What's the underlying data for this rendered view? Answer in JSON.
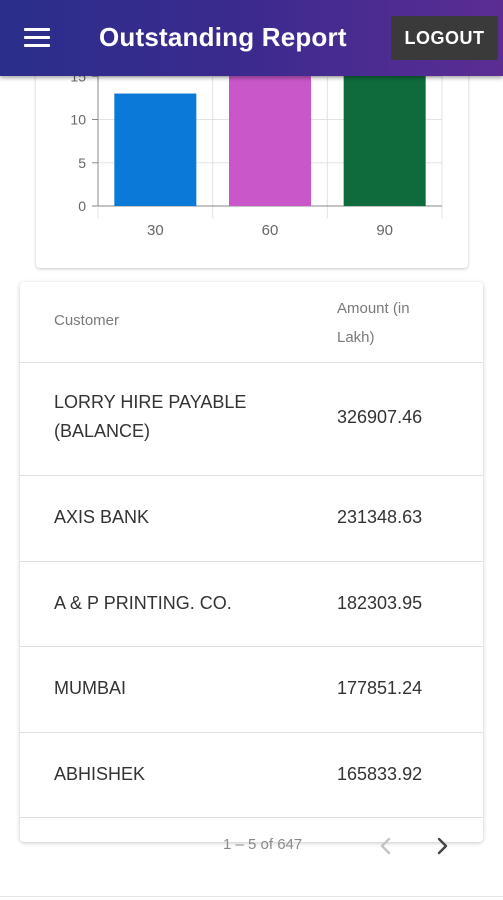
{
  "header": {
    "title": "Outstanding Report",
    "logout_label": "LOGOUT"
  },
  "chart_data": {
    "type": "bar",
    "categories": [
      "30",
      "60",
      "90"
    ],
    "values": [
      13,
      17,
      17
    ],
    "colors": [
      "#0b79d8",
      "#c957c9",
      "#0f6b3c"
    ],
    "yticks": [
      "0",
      "5",
      "10",
      "15"
    ],
    "ylim": [
      0,
      17
    ]
  },
  "table": {
    "headers": {
      "customer": "Customer",
      "amount_line1": "Amount (in",
      "amount_line2": "Lakh)"
    },
    "rows": [
      {
        "name_line1": "LORRY HIRE PAYABLE",
        "name_line2": "(BALANCE)",
        "amount": "326907.46"
      },
      {
        "name_line1": "AXIS BANK",
        "name_line2": "",
        "amount": "231348.63"
      },
      {
        "name_line1": "A & P PRINTING. CO.",
        "name_line2": "",
        "amount": "182303.95"
      },
      {
        "name_line1": "MUMBAI",
        "name_line2": "",
        "amount": "177851.24"
      },
      {
        "name_line1": "ABHISHEK",
        "name_line2": "",
        "amount": "165833.92"
      }
    ]
  },
  "pagination": {
    "range_text": "1 – 5 of 647"
  }
}
